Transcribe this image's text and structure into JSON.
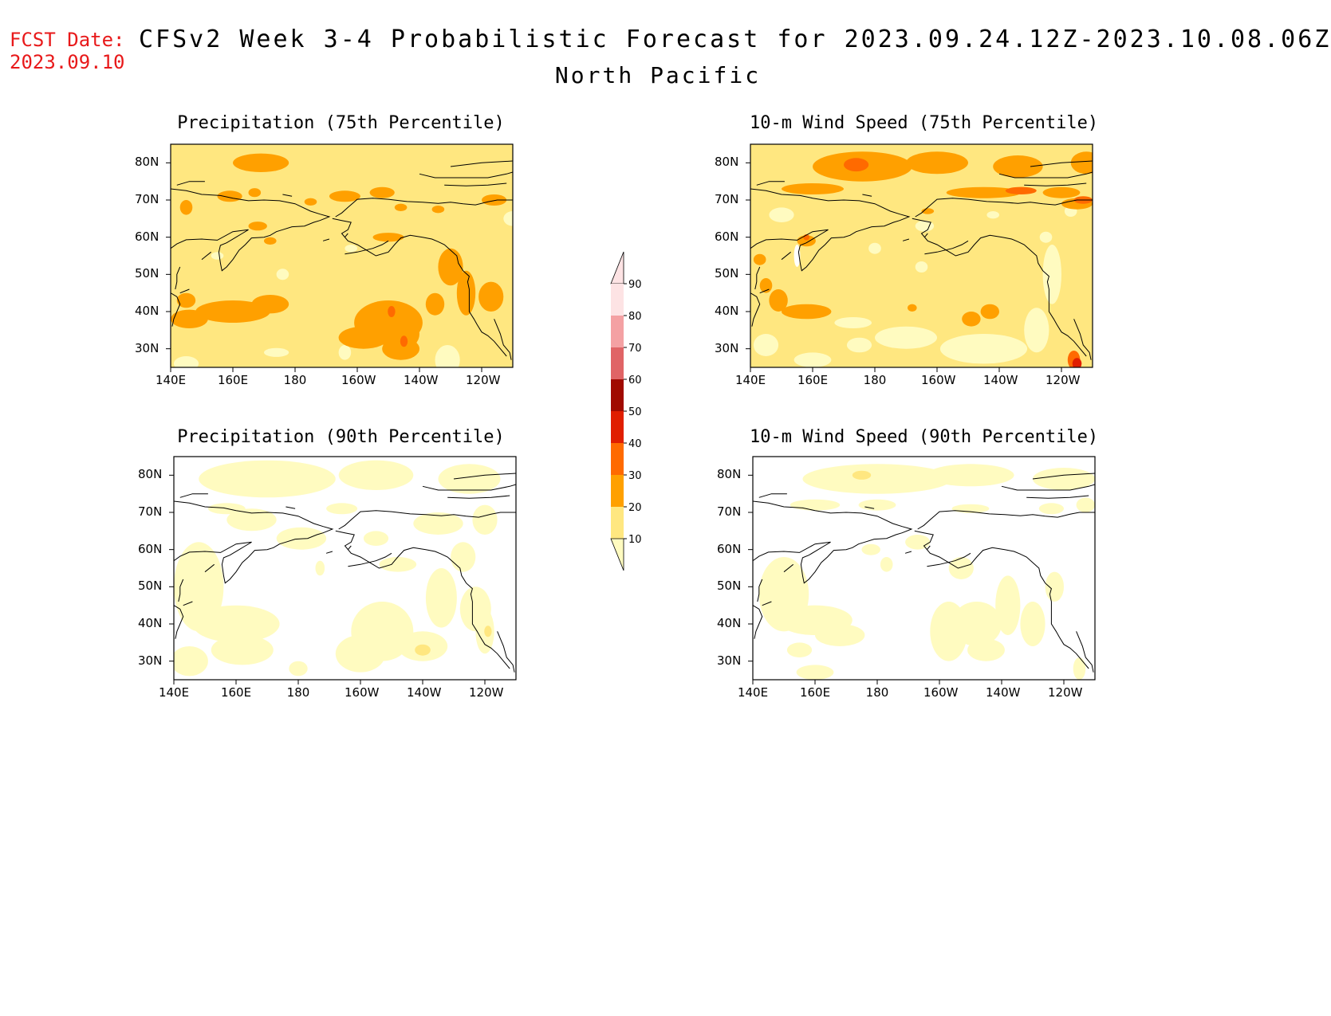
{
  "header": {
    "fcst_label": "FCST Date:",
    "fcst_date": "2023.09.10",
    "title": "CFSv2 Week 3-4 Probabilistic Forecast for 2023.09.24.12Z-2023.10.08.06Z",
    "subtitle": "North Pacific"
  },
  "panels": [
    {
      "id": "precip75",
      "title": "Precipitation (75th Percentile)",
      "base_level": 2,
      "blobs": "p75"
    },
    {
      "id": "wind75",
      "title": "10-m Wind Speed (75th Percentile)",
      "base_level": 2,
      "blobs": "w75"
    },
    {
      "id": "precip90",
      "title": "Precipitation (90th Percentile)",
      "base_level": 0,
      "blobs": "p90"
    },
    {
      "id": "wind90",
      "title": "10-m Wind Speed (90th Percentile)",
      "base_level": 0,
      "blobs": "w90"
    }
  ],
  "axes": {
    "lat_labels": [
      "80N",
      "70N",
      "60N",
      "50N",
      "40N",
      "30N"
    ],
    "lon_labels": [
      "140E",
      "160E",
      "180",
      "160W",
      "140W",
      "120W"
    ]
  },
  "colorbar": {
    "levels": [
      "10",
      "20",
      "30",
      "40",
      "50",
      "60",
      "70",
      "80",
      "90"
    ],
    "colors": [
      "#fffbc0",
      "#ffe780",
      "#ffa000",
      "#ff6a00",
      "#e01e00",
      "#a00a00",
      "#e06466",
      "#f4a1a3",
      "#fde3e4"
    ]
  },
  "colors": {
    "fcst": "#e8191a",
    "ocean_base_75": "#ffe780",
    "white": "#ffffff"
  }
}
